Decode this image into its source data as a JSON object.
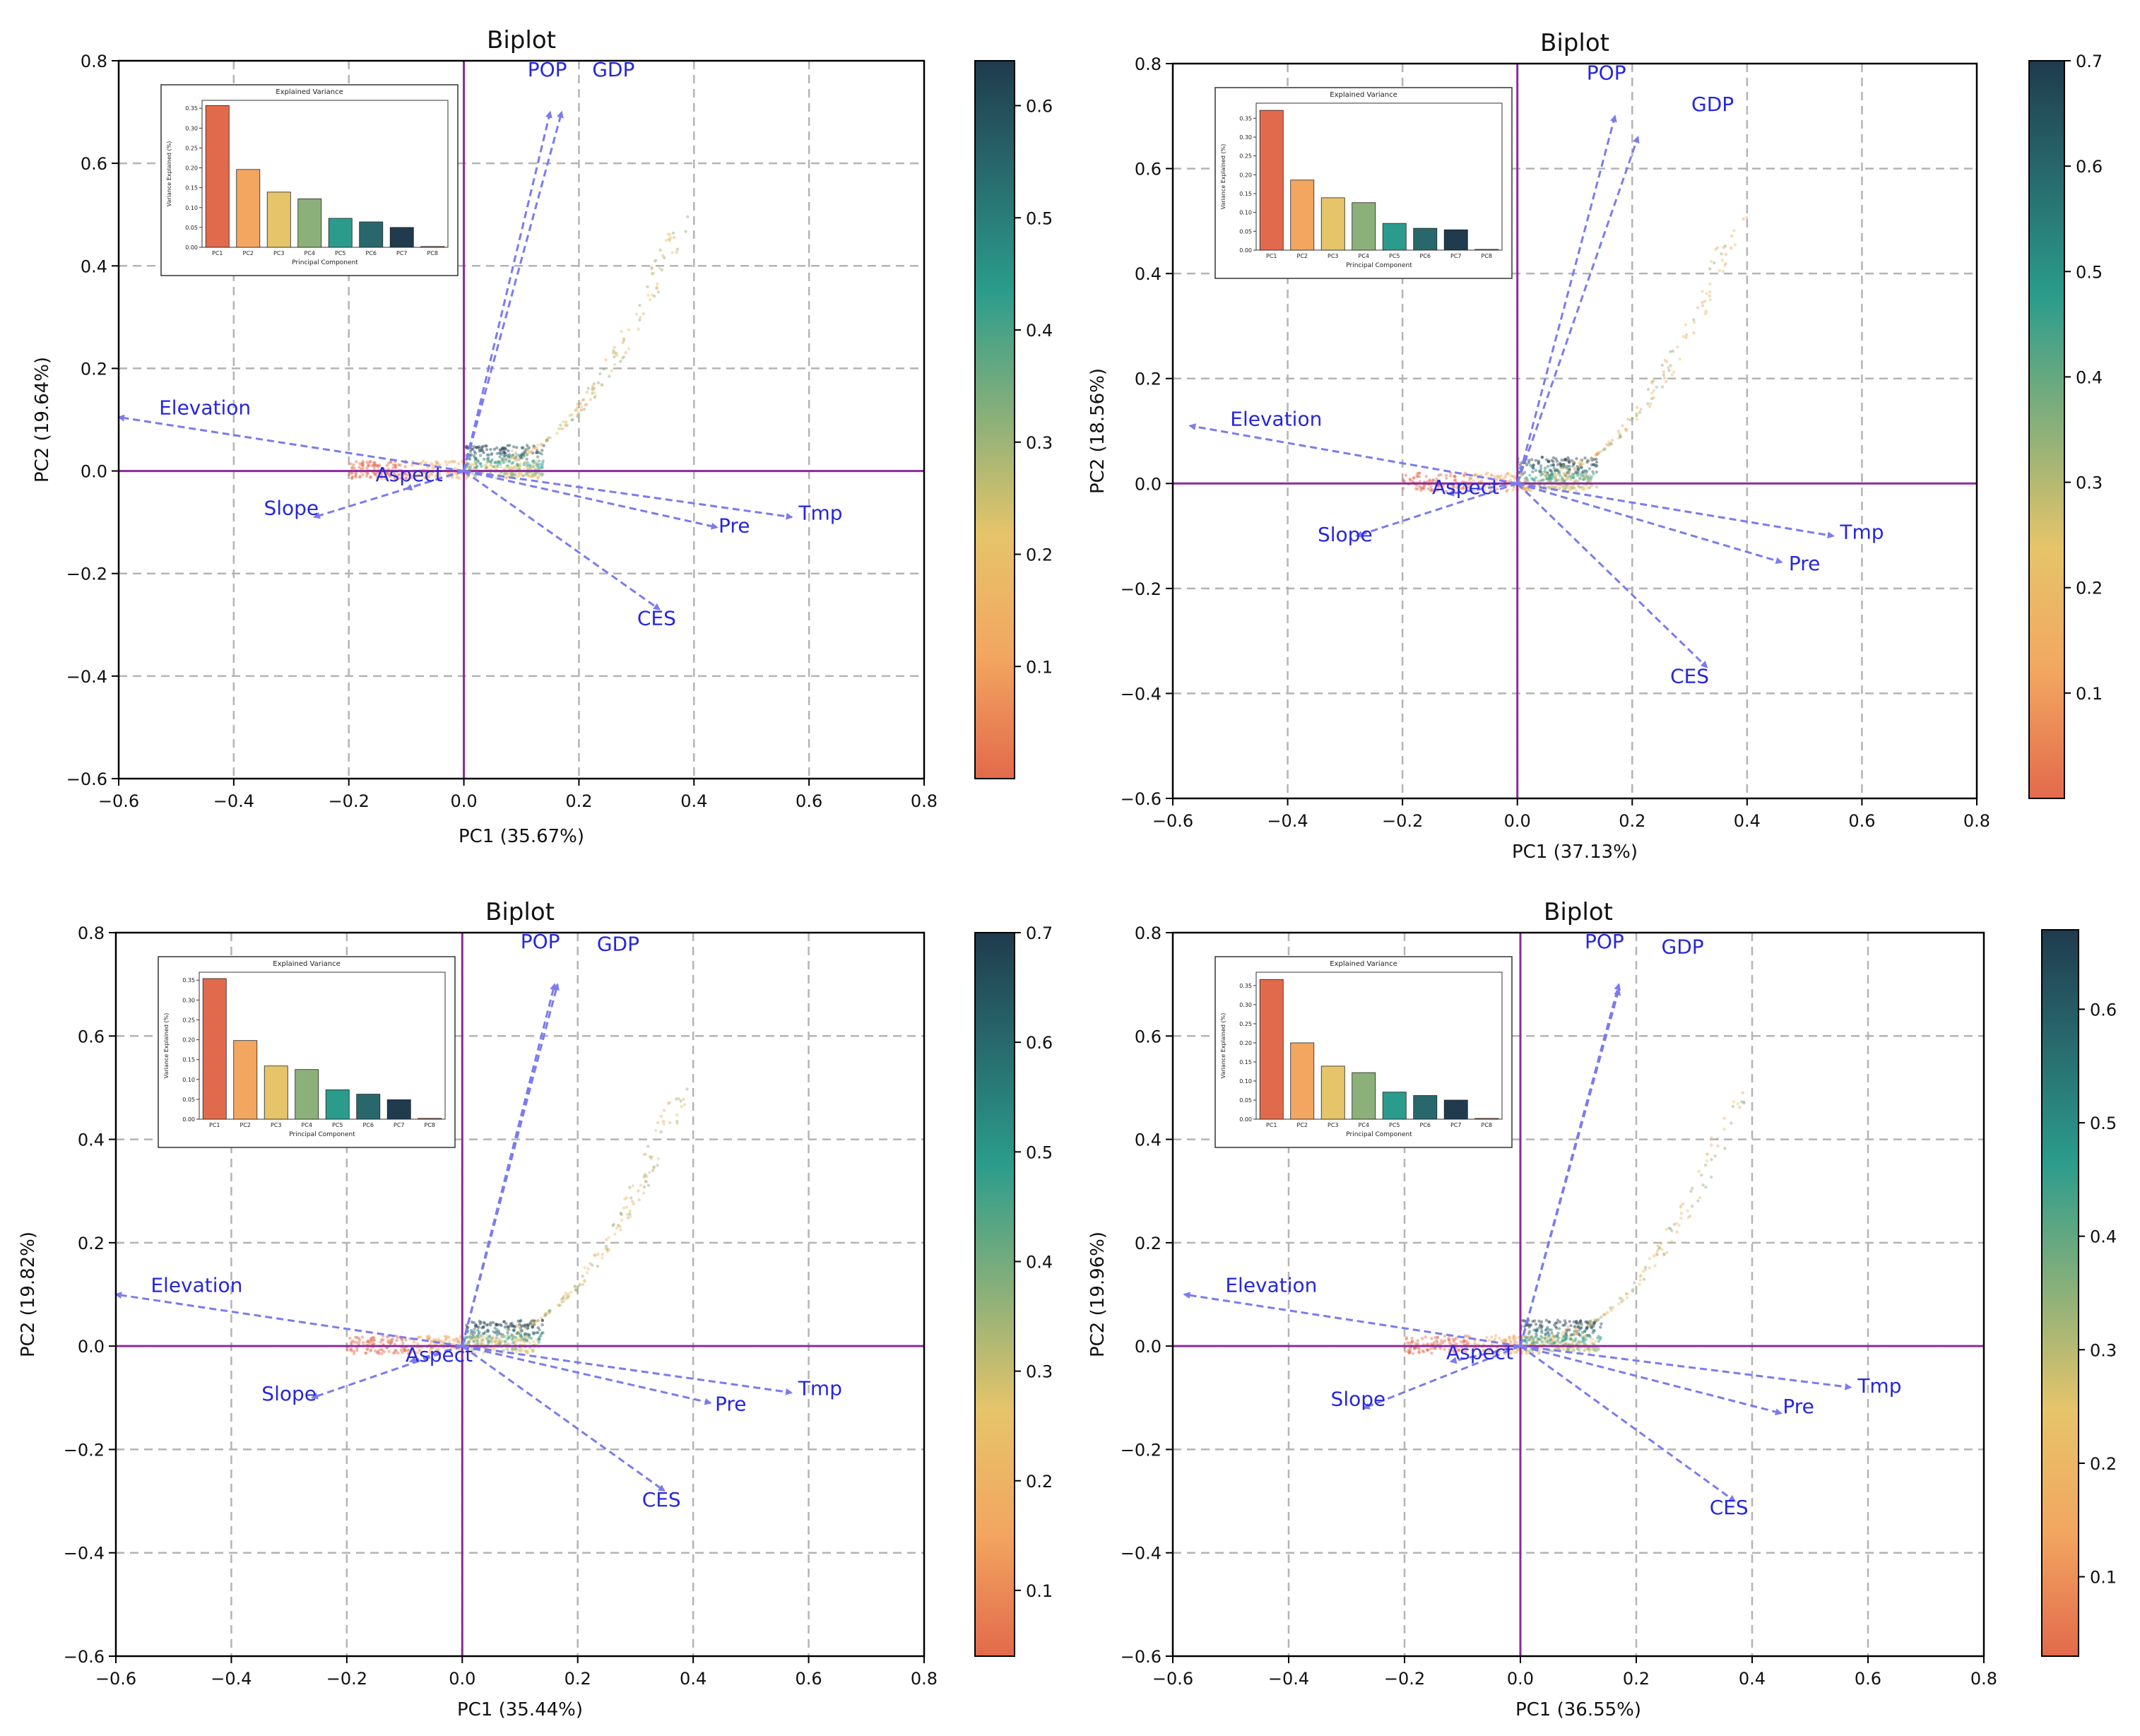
{
  "chart_data": [
    {
      "type": "scatter",
      "panel": "a",
      "title": "Biplot",
      "xlabel": "PC1 (35.67%)",
      "ylabel": "PC2 (19.64%)",
      "xlim": [
        -0.6,
        0.8
      ],
      "ylim": [
        -0.6,
        0.8
      ],
      "xticks": [
        -0.6,
        -0.4,
        -0.2,
        0.0,
        0.2,
        0.4,
        0.6,
        0.8
      ],
      "yticks": [
        -0.6,
        -0.4,
        -0.2,
        0.0,
        0.2,
        0.4,
        0.6,
        0.8
      ],
      "tick_labels": [
        "−0.6",
        "−0.4",
        "−0.2",
        "0.0",
        "0.2",
        "0.4",
        "0.6",
        "0.8"
      ],
      "grid": true,
      "loadings": [
        {
          "name": "POP",
          "x": 0.15,
          "y": 0.7,
          "lx": 0.145,
          "ly": 0.77
        },
        {
          "name": "GDP",
          "x": 0.17,
          "y": 0.7,
          "lx": 0.26,
          "ly": 0.77
        },
        {
          "name": "Elevation",
          "x": -0.6,
          "y": 0.105,
          "lx": -0.45,
          "ly": 0.11
        },
        {
          "name": "Slope",
          "x": -0.26,
          "y": -0.09,
          "lx": -0.3,
          "ly": -0.085
        },
        {
          "name": "Aspect",
          "x": -0.1,
          "y": -0.035,
          "lx": -0.095,
          "ly": -0.02
        },
        {
          "name": "Pre",
          "x": 0.44,
          "y": -0.11,
          "lx": 0.47,
          "ly": -0.12
        },
        {
          "name": "Tmp",
          "x": 0.57,
          "y": -0.09,
          "lx": 0.62,
          "ly": -0.095
        },
        {
          "name": "CES",
          "x": 0.34,
          "y": -0.27,
          "lx": 0.335,
          "ly": -0.3
        }
      ],
      "colorbar": {
        "min": 0.0,
        "max": 0.64,
        "ticks": [
          0.1,
          0.2,
          0.3,
          0.4,
          0.5,
          0.6
        ],
        "tick_labels": [
          "0.1",
          "0.2",
          "0.3",
          "0.4",
          "0.5",
          "0.6"
        ],
        "colors": [
          "#e26a4c",
          "#f2a660",
          "#e6c46a",
          "#8cb079",
          "#2b9c8c",
          "#28686c",
          "#1f3b4d"
        ]
      },
      "inset": {
        "title": "Explained Variance",
        "xlabel": "Principal Component",
        "ylabel": "Variance Explained (%)",
        "categories": [
          "PC1",
          "PC2",
          "PC3",
          "PC4",
          "PC5",
          "PC6",
          "PC7",
          "PC8"
        ],
        "values": [
          0.357,
          0.196,
          0.139,
          0.122,
          0.073,
          0.064,
          0.05,
          0.002
        ],
        "ylim": [
          0,
          0.37
        ],
        "yticks": [
          0.0,
          0.05,
          0.1,
          0.15,
          0.2,
          0.25,
          0.3,
          0.35
        ],
        "ytick_labels": [
          "0.00",
          "0.05",
          "0.10",
          "0.15",
          "0.20",
          "0.25",
          "0.30",
          "0.35"
        ]
      }
    },
    {
      "type": "scatter",
      "panel": "b",
      "title": "Biplot",
      "xlabel": "PC1 (37.13%)",
      "ylabel": "PC2 (18.56%)",
      "xlim": [
        -0.6,
        0.8
      ],
      "ylim": [
        -0.6,
        0.8
      ],
      "xticks": [
        -0.6,
        -0.4,
        -0.2,
        0.0,
        0.2,
        0.4,
        0.6,
        0.8
      ],
      "yticks": [
        -0.6,
        -0.4,
        -0.2,
        0.0,
        0.2,
        0.4,
        0.6,
        0.8
      ],
      "tick_labels": [
        "−0.6",
        "−0.4",
        "−0.2",
        "0.0",
        "0.2",
        "0.4",
        "0.6",
        "0.8"
      ],
      "grid": true,
      "loadings": [
        {
          "name": "POP",
          "x": 0.17,
          "y": 0.7,
          "lx": 0.155,
          "ly": 0.77
        },
        {
          "name": "GDP",
          "x": 0.21,
          "y": 0.66,
          "lx": 0.34,
          "ly": 0.71
        },
        {
          "name": "Elevation",
          "x": -0.57,
          "y": 0.11,
          "lx": -0.42,
          "ly": 0.11
        },
        {
          "name": "Slope",
          "x": -0.28,
          "y": -0.1,
          "lx": -0.3,
          "ly": -0.11
        },
        {
          "name": "Aspect",
          "x": -0.12,
          "y": -0.02,
          "lx": -0.09,
          "ly": -0.02
        },
        {
          "name": "Pre",
          "x": 0.46,
          "y": -0.15,
          "lx": 0.5,
          "ly": -0.165
        },
        {
          "name": "Tmp",
          "x": 0.55,
          "y": -0.1,
          "lx": 0.6,
          "ly": -0.105
        },
        {
          "name": "CES",
          "x": 0.33,
          "y": -0.35,
          "lx": 0.3,
          "ly": -0.38
        }
      ],
      "colorbar": {
        "min": 0.0,
        "max": 0.7,
        "ticks": [
          0.1,
          0.2,
          0.3,
          0.4,
          0.5,
          0.6,
          0.7
        ],
        "tick_labels": [
          "0.1",
          "0.2",
          "0.3",
          "0.4",
          "0.5",
          "0.6",
          "0.7"
        ],
        "colors": [
          "#e26a4c",
          "#f2a660",
          "#e6c46a",
          "#8cb079",
          "#2b9c8c",
          "#28686c",
          "#1f3b4d"
        ]
      },
      "inset": {
        "title": "Explained Variance",
        "xlabel": "Principal Component",
        "ylabel": "Variance Explained (%)",
        "categories": [
          "PC1",
          "PC2",
          "PC3",
          "PC4",
          "PC5",
          "PC6",
          "PC7",
          "PC8"
        ],
        "values": [
          0.371,
          0.186,
          0.139,
          0.126,
          0.071,
          0.058,
          0.054,
          0.002
        ],
        "ylim": [
          0,
          0.39
        ],
        "yticks": [
          0.0,
          0.05,
          0.1,
          0.15,
          0.2,
          0.25,
          0.3,
          0.35
        ],
        "ytick_labels": [
          "0.00",
          "0.05",
          "0.10",
          "0.15",
          "0.20",
          "0.25",
          "0.30",
          "0.35"
        ]
      }
    },
    {
      "type": "scatter",
      "panel": "c",
      "title": "Biplot",
      "xlabel": "PC1 (35.44%)",
      "ylabel": "PC2 (19.82%)",
      "xlim": [
        -0.6,
        0.8
      ],
      "ylim": [
        -0.6,
        0.8
      ],
      "xticks": [
        -0.6,
        -0.4,
        -0.2,
        0.0,
        0.2,
        0.4,
        0.6,
        0.8
      ],
      "yticks": [
        -0.6,
        -0.4,
        -0.2,
        0.0,
        0.2,
        0.4,
        0.6,
        0.8
      ],
      "tick_labels": [
        "−0.6",
        "−0.4",
        "−0.2",
        "0.0",
        "0.2",
        "0.4",
        "0.6",
        "0.8"
      ],
      "grid": true,
      "loadings": [
        {
          "name": "POP",
          "x": 0.16,
          "y": 0.7,
          "lx": 0.135,
          "ly": 0.77
        },
        {
          "name": "GDP",
          "x": 0.165,
          "y": 0.7,
          "lx": 0.27,
          "ly": 0.765
        },
        {
          "name": "Elevation",
          "x": -0.6,
          "y": 0.1,
          "lx": -0.46,
          "ly": 0.105
        },
        {
          "name": "Slope",
          "x": -0.26,
          "y": -0.1,
          "lx": -0.3,
          "ly": -0.105
        },
        {
          "name": "Aspect",
          "x": -0.09,
          "y": -0.03,
          "lx": -0.04,
          "ly": -0.03
        },
        {
          "name": "Pre",
          "x": 0.43,
          "y": -0.11,
          "lx": 0.465,
          "ly": -0.125
        },
        {
          "name": "Tmp",
          "x": 0.57,
          "y": -0.09,
          "lx": 0.62,
          "ly": -0.095
        },
        {
          "name": "CES",
          "x": 0.35,
          "y": -0.28,
          "lx": 0.345,
          "ly": -0.31
        }
      ],
      "colorbar": {
        "min": 0.04,
        "max": 0.7,
        "ticks": [
          0.1,
          0.2,
          0.3,
          0.4,
          0.5,
          0.6,
          0.7
        ],
        "tick_labels": [
          "0.1",
          "0.2",
          "0.3",
          "0.4",
          "0.5",
          "0.6",
          "0.7"
        ],
        "colors": [
          "#e26a4c",
          "#f2a660",
          "#e6c46a",
          "#8cb079",
          "#2b9c8c",
          "#28686c",
          "#1f3b4d"
        ]
      },
      "inset": {
        "title": "Explained Variance",
        "xlabel": "Principal Component",
        "ylabel": "Variance Explained (%)",
        "categories": [
          "PC1",
          "PC2",
          "PC3",
          "PC4",
          "PC5",
          "PC6",
          "PC7",
          "PC8"
        ],
        "values": [
          0.354,
          0.198,
          0.134,
          0.125,
          0.074,
          0.063,
          0.049,
          0.002
        ],
        "ylim": [
          0,
          0.37
        ],
        "yticks": [
          0.0,
          0.05,
          0.1,
          0.15,
          0.2,
          0.25,
          0.3,
          0.35
        ],
        "ytick_labels": [
          "0.00",
          "0.05",
          "0.10",
          "0.15",
          "0.20",
          "0.25",
          "0.30",
          "0.35"
        ]
      }
    },
    {
      "type": "scatter",
      "panel": "d",
      "title": "Biplot",
      "xlabel": "PC1 (36.55%)",
      "ylabel": "PC2 (19.96%)",
      "xlim": [
        -0.6,
        0.8
      ],
      "ylim": [
        -0.6,
        0.8
      ],
      "xticks": [
        -0.6,
        -0.4,
        -0.2,
        0.0,
        0.2,
        0.4,
        0.6,
        0.8
      ],
      "yticks": [
        -0.6,
        -0.4,
        -0.2,
        0.0,
        0.2,
        0.4,
        0.6,
        0.8
      ],
      "tick_labels": [
        "−0.6",
        "−0.4",
        "−0.2",
        "0.0",
        "0.2",
        "0.4",
        "0.6",
        "0.8"
      ],
      "grid": true,
      "loadings": [
        {
          "name": "POP",
          "x": 0.17,
          "y": 0.7,
          "lx": 0.145,
          "ly": 0.77
        },
        {
          "name": "GDP",
          "x": 0.17,
          "y": 0.69,
          "lx": 0.28,
          "ly": 0.76
        },
        {
          "name": "Elevation",
          "x": -0.58,
          "y": 0.1,
          "lx": -0.43,
          "ly": 0.105
        },
        {
          "name": "Slope",
          "x": -0.27,
          "y": -0.12,
          "lx": -0.28,
          "ly": -0.115
        },
        {
          "name": "Aspect",
          "x": -0.12,
          "y": -0.03,
          "lx": -0.07,
          "ly": -0.025
        },
        {
          "name": "Pre",
          "x": 0.45,
          "y": -0.13,
          "lx": 0.48,
          "ly": -0.13
        },
        {
          "name": "Tmp",
          "x": 0.57,
          "y": -0.08,
          "lx": 0.62,
          "ly": -0.09
        },
        {
          "name": "CES",
          "x": 0.37,
          "y": -0.3,
          "lx": 0.36,
          "ly": -0.325
        }
      ],
      "colorbar": {
        "min": 0.03,
        "max": 0.67,
        "ticks": [
          0.1,
          0.2,
          0.3,
          0.4,
          0.5,
          0.6
        ],
        "tick_labels": [
          "0.1",
          "0.2",
          "0.3",
          "0.4",
          "0.5",
          "0.6"
        ],
        "colors": [
          "#e26a4c",
          "#f2a660",
          "#e6c46a",
          "#8cb079",
          "#2b9c8c",
          "#28686c",
          "#1f3b4d"
        ]
      },
      "inset": {
        "title": "Explained Variance",
        "xlabel": "Principal Component",
        "ylabel": "Variance Explained (%)",
        "categories": [
          "PC1",
          "PC2",
          "PC3",
          "PC4",
          "PC5",
          "PC6",
          "PC7",
          "PC8"
        ],
        "values": [
          0.366,
          0.2,
          0.139,
          0.122,
          0.071,
          0.062,
          0.05,
          0.002
        ],
        "ylim": [
          0,
          0.385
        ],
        "yticks": [
          0.0,
          0.05,
          0.1,
          0.15,
          0.2,
          0.25,
          0.3,
          0.35
        ],
        "ytick_labels": [
          "0.00",
          "0.05",
          "0.10",
          "0.15",
          "0.20",
          "0.25",
          "0.30",
          "0.35"
        ]
      }
    }
  ],
  "style": {
    "loading_color": "#2626e0",
    "arrow_color": "#7b7bf0",
    "axis_line_color": "#8b2a9c",
    "grid_color": "#b4b4b4",
    "bar_colors": [
      "#e26a4c",
      "#f2a660",
      "#e6c46a",
      "#8cb079",
      "#2b9c8c",
      "#28686c",
      "#1f3b4d",
      "#e26a4c"
    ]
  }
}
